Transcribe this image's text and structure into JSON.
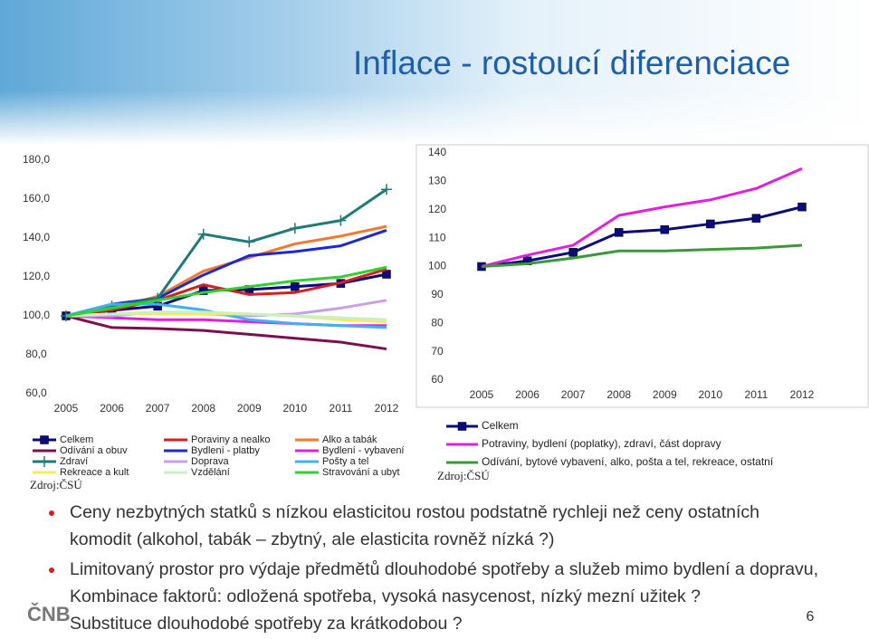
{
  "slide": {
    "title": "Inflace - rostoucí diferenciace",
    "bullets": [
      [
        "Ceny nezbytných statků s nízkou elasticitou rostou podstatně rychleji než ceny ostatních",
        "komodit (alkohol, tabák – zbytný, ale elasticita rovněž nízká ?)"
      ],
      [
        "Limitovaný prostor pro výdaje předmětů dlouhodobé spotřeby a služeb mimo bydlení a dopravu,",
        "Kombinace faktorů: odložená spotřeba, vysoká nasycenost,  nízký mezní užitek ?",
        "Substituce dlouhodobé spotřeby za krátkodobou ?"
      ]
    ],
    "logo": "ČNB",
    "page_number": "6"
  },
  "chart_data": [
    {
      "type": "line",
      "source": "Zdroj:ČSÚ",
      "categories": [
        "2005",
        "2006",
        "2007",
        "2008",
        "2009",
        "2010",
        "2011",
        "2012"
      ],
      "ylim": [
        60,
        180
      ],
      "yticks": [
        {
          "value": 60,
          "label": "60,0"
        },
        {
          "value": 80,
          "label": "80,0"
        },
        {
          "value": 100,
          "label": "100,0"
        },
        {
          "value": 120,
          "label": "120,0"
        },
        {
          "value": 140,
          "label": "140,0"
        },
        {
          "value": 160,
          "label": "160,0"
        },
        {
          "value": 180,
          "label": "180,0"
        }
      ],
      "series": [
        {
          "name": "Celkem",
          "color": "#0b0b7a",
          "marker": "square",
          "values": [
            100,
            102.8,
            105,
            113,
            113.5,
            115,
            116.7,
            121.4
          ]
        },
        {
          "name": "Poraviny a nealko",
          "color": "#d42020",
          "values": [
            100,
            103,
            108,
            116,
            111,
            112,
            117,
            124
          ]
        },
        {
          "name": "Alko a tabák",
          "color": "#f07a30",
          "values": [
            100,
            104,
            110,
            123,
            130,
            137,
            141,
            146
          ]
        },
        {
          "name": "Odívání a obuv",
          "color": "#7a1050",
          "values": [
            100,
            94,
            93.5,
            92.5,
            90.5,
            88.5,
            86.5,
            83
          ]
        },
        {
          "name": "Bydlení - platby",
          "color": "#1a2ad0",
          "values": [
            100,
            106,
            109,
            121,
            131,
            133,
            136,
            144
          ]
        },
        {
          "name": "Bydlení - vybavení",
          "color": "#e020e0",
          "values": [
            100,
            99,
            98,
            98,
            97,
            96,
            95,
            95
          ]
        },
        {
          "name": "Zdraví",
          "color": "#1f7a78",
          "marker": "plus",
          "values": [
            100,
            105,
            109,
            142,
            138,
            145,
            149,
            165
          ]
        },
        {
          "name": "Doprava",
          "color": "#c8a0e8",
          "values": [
            100,
            100,
            102,
            101,
            100,
            101,
            104,
            108
          ]
        },
        {
          "name": "Pošty a tel",
          "color": "#40b0f0",
          "values": [
            100,
            106,
            106,
            103,
            98,
            96,
            95,
            94
          ]
        },
        {
          "name": "Rekreace a kult",
          "color": "#f8e860",
          "values": [
            100,
            101,
            101,
            101,
            101,
            100,
            98,
            97
          ]
        },
        {
          "name": "Vzdělání",
          "color": "#c8f0c0",
          "values": [
            100,
            101,
            102,
            102,
            101,
            100,
            99,
            98
          ]
        },
        {
          "name": "Stravování a ubyt",
          "color": "#30d030",
          "values": [
            100,
            104,
            108,
            112,
            115,
            118,
            120,
            125
          ]
        }
      ]
    },
    {
      "type": "line",
      "source": "Zdroj:ČSÚ",
      "categories": [
        "2005",
        "2006",
        "2007",
        "2008",
        "2009",
        "2010",
        "2011",
        "2012"
      ],
      "ylim": [
        60,
        140
      ],
      "yticks": [
        60,
        70,
        80,
        90,
        100,
        110,
        120,
        130,
        140
      ],
      "series": [
        {
          "name": "Celkem",
          "color": "#0b0b7a",
          "marker": "square",
          "values": [
            100,
            102,
            105,
            112,
            113,
            115,
            117,
            121
          ]
        },
        {
          "name": "Potraviny, bydlení (poplatky), zdraví, část dopravy",
          "color": "#e020e0",
          "values": [
            100,
            104,
            107.5,
            118,
            121,
            123.5,
            127.5,
            134.5
          ]
        },
        {
          "name": "Odívání, bytové vybavení, alko, pošta a tel, rekreace, ostatní",
          "color": "#3a9a3a",
          "values": [
            100,
            101,
            103,
            105.5,
            105.5,
            106,
            106.5,
            107.5
          ]
        }
      ]
    }
  ]
}
